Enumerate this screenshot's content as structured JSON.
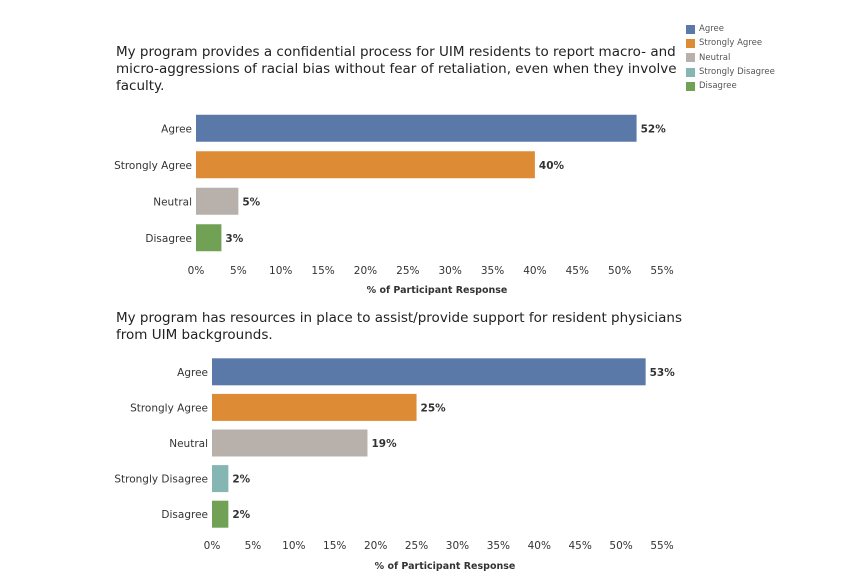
{
  "colors": {
    "Agree": "#5b79a8",
    "Strongly Agree": "#de8b36",
    "Neutral": "#b8b0ab",
    "Strongly Disagree": "#86b6b4",
    "Disagree": "#70a155"
  },
  "legend": [
    "Agree",
    "Strongly Agree",
    "Neutral",
    "Strongly Disagree",
    "Disagree"
  ],
  "chart_data": [
    {
      "type": "bar",
      "orientation": "horizontal",
      "title": "My program provides a confidential process for UIM residents to report macro- and micro-aggressions of racial bias without fear of retaliation, even when they involve faculty.",
      "categories": [
        "Agree",
        "Strongly Agree",
        "Neutral",
        "Disagree"
      ],
      "values": [
        52,
        40,
        5,
        3
      ],
      "value_labels": [
        "52%",
        "40%",
        "5%",
        "3%"
      ],
      "xlabel": "% of Participant Response",
      "xticks": [
        "0%",
        "5%",
        "10%",
        "15%",
        "20%",
        "25%",
        "30%",
        "35%",
        "40%",
        "45%",
        "50%",
        "55%"
      ],
      "xlim": [
        0,
        55
      ]
    },
    {
      "type": "bar",
      "orientation": "horizontal",
      "title": "My program has resources in place to assist/provide support for resident physicians from UIM backgrounds.",
      "categories": [
        "Agree",
        "Strongly Agree",
        "Neutral",
        "Strongly Disagree",
        "Disagree"
      ],
      "values": [
        53,
        25,
        19,
        2,
        2
      ],
      "value_labels": [
        "53%",
        "25%",
        "19%",
        "2%",
        "2%"
      ],
      "xlabel": "% of Participant Response",
      "xticks": [
        "0%",
        "5%",
        "10%",
        "15%",
        "20%",
        "25%",
        "30%",
        "35%",
        "40%",
        "45%",
        "50%",
        "55%"
      ],
      "xlim": [
        0,
        55
      ]
    }
  ]
}
